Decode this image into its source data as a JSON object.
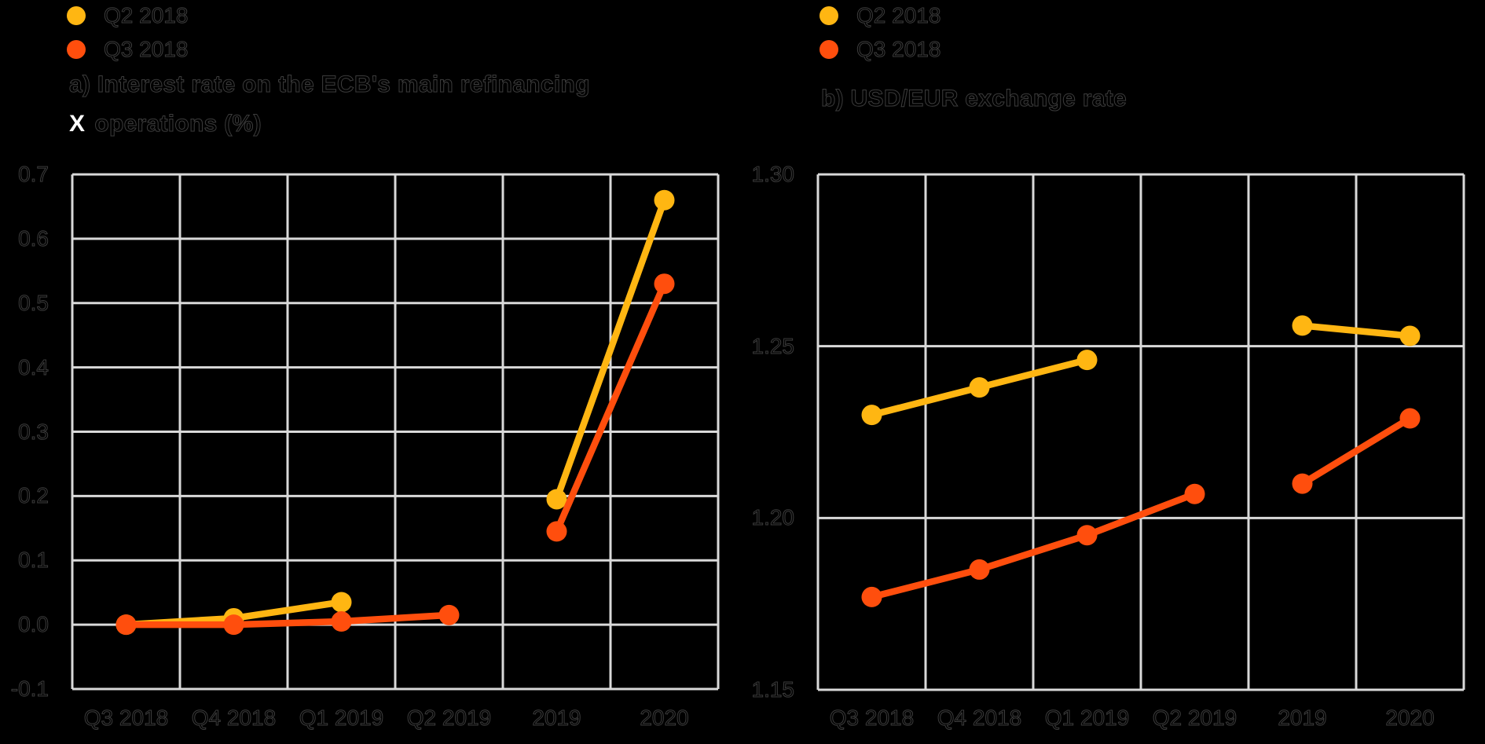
{
  "background_color": "#000000",
  "grid_color": "#D9D9D9",
  "stray_marker": "X",
  "chart_data": [
    {
      "id": "a",
      "type": "line",
      "title": "a) Interest rate on the ECB's main refinancing operations (%)",
      "title_lines": [
        "a) Interest rate on the ECB's main refinancing",
        "operations (%)"
      ],
      "categories": [
        "Q3 2018",
        "Q4 2018",
        "Q1 2019",
        "Q2 2019",
        "2019",
        "2020"
      ],
      "ylim": [
        -0.1,
        0.7
      ],
      "ytick_labels": [
        "0.7",
        "0.6",
        "0.5",
        "0.4",
        "0.3",
        "0.2",
        "0.1",
        "0.0",
        "-0.1"
      ],
      "ytick_values": [
        0.7,
        0.6,
        0.5,
        0.4,
        0.3,
        0.2,
        0.1,
        0.0,
        -0.1
      ],
      "grid": true,
      "legend_position": "top-left",
      "series": [
        {
          "name": "Q2 2018",
          "color": "#FFB612",
          "segments": [
            {
              "x": [
                "Q3 2018",
                "Q4 2018",
                "Q1 2019"
              ],
              "y": [
                0.0,
                0.01,
                0.035
              ]
            },
            {
              "x": [
                "2019",
                "2020"
              ],
              "y": [
                0.195,
                0.66
              ]
            }
          ]
        },
        {
          "name": "Q3 2018",
          "color": "#FF4E0D",
          "segments": [
            {
              "x": [
                "Q3 2018",
                "Q4 2018",
                "Q1 2019",
                "Q2 2019"
              ],
              "y": [
                0.0,
                0.0,
                0.005,
                0.015
              ]
            },
            {
              "x": [
                "2019",
                "2020"
              ],
              "y": [
                0.145,
                0.53
              ]
            }
          ]
        }
      ]
    },
    {
      "id": "b",
      "type": "line",
      "title": "b) USD/EUR exchange rate",
      "categories": [
        "Q3 2018",
        "Q4 2018",
        "Q1 2019",
        "Q2 2019",
        "2019",
        "2020"
      ],
      "ylim": [
        1.15,
        1.3
      ],
      "ytick_labels": [
        "1.30",
        "1.25",
        "1.20",
        "1.15"
      ],
      "ytick_values": [
        1.3,
        1.25,
        1.2,
        1.15
      ],
      "grid": true,
      "legend_position": "top-left",
      "series": [
        {
          "name": "Q2 2018",
          "color": "#FFB612",
          "segments": [
            {
              "x": [
                "Q3 2018",
                "Q4 2018",
                "Q1 2019"
              ],
              "y": [
                1.23,
                1.238,
                1.246
              ]
            },
            {
              "x": [
                "2019",
                "2020"
              ],
              "y": [
                1.256,
                1.253
              ]
            }
          ]
        },
        {
          "name": "Q3 2018",
          "color": "#FF4E0D",
          "segments": [
            {
              "x": [
                "Q3 2018",
                "Q4 2018",
                "Q1 2019",
                "Q2 2019"
              ],
              "y": [
                1.177,
                1.185,
                1.195,
                1.207
              ]
            },
            {
              "x": [
                "2019",
                "2020"
              ],
              "y": [
                1.21,
                1.229
              ]
            }
          ]
        }
      ]
    }
  ]
}
